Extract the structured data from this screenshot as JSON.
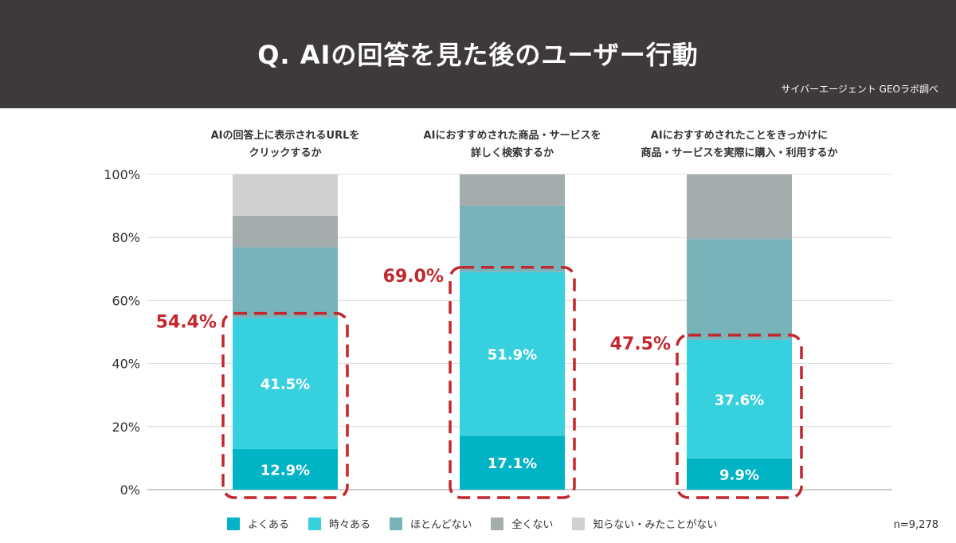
{
  "header": {
    "title": "Q. AIの回答を見た後のユーザー行動",
    "credit": "サイバーエージェント GEOラボ調べ"
  },
  "n_label": "n=9,278",
  "colors": {
    "header_bg": "#3e3a39",
    "highlight": "#c1272d"
  },
  "chart_data": {
    "type": "bar",
    "stacked": true,
    "categories": [
      "AIの回答上に表示されるURLをクリックするか",
      "AIにおすすめされた商品・サービスを詳しく検索するか",
      "AIにおすすめされたことをきっかけに商品・サービスを実際に購入・利用するか"
    ],
    "category_lines": [
      [
        "AIの回答上に表示されるURLを",
        "クリックするか"
      ],
      [
        "AIにおすすめされた商品・サービスを",
        "詳しく検索するか"
      ],
      [
        "AIにおすすめされたことをきっかけに",
        "商品・サービスを実際に購入・利用するか"
      ]
    ],
    "series": [
      {
        "name": "よくある",
        "color": "#00b4c6",
        "values": [
          12.9,
          17.1,
          9.9
        ],
        "labels": [
          "12.9%",
          "17.1%",
          "9.9%"
        ]
      },
      {
        "name": "時々ある",
        "color": "#37d0de",
        "values": [
          41.5,
          51.9,
          37.6
        ],
        "labels": [
          "41.5%",
          "51.9%",
          "37.6%"
        ]
      },
      {
        "name": "ほとんどない",
        "color": "#78b3b9",
        "values": [
          22.5,
          21.0,
          32.0
        ]
      },
      {
        "name": "全くない",
        "color": "#a3adae",
        "values": [
          10.0,
          10.0,
          20.5
        ]
      },
      {
        "name": "知らない・みたことがない",
        "color": "#d0d0d0",
        "values": [
          13.1,
          0.0,
          0.0
        ]
      }
    ],
    "highlight_totals": [
      "54.4%",
      "69.0%",
      "47.5%"
    ],
    "y_ticks": [
      "0%",
      "20%",
      "40%",
      "60%",
      "80%",
      "100%"
    ],
    "ylim": [
      0,
      100
    ],
    "grid": true,
    "legend_position": "bottom"
  }
}
